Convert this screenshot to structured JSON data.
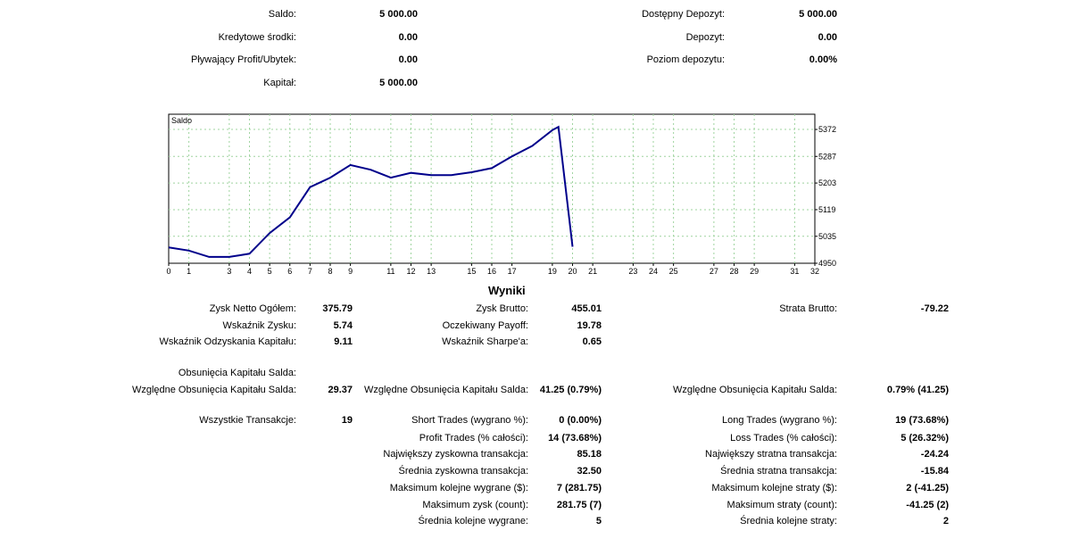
{
  "account": {
    "saldo_label": "Saldo:",
    "saldo_value": "5 000.00",
    "kredyt_label": "Kredytowe środki:",
    "kredyt_value": "0.00",
    "plywajacy_label": "Pływający Profit/Ubytek:",
    "plywajacy_value": "0.00",
    "kapital_label": "Kapitał:",
    "kapital_value": "5 000.00",
    "dostepny_label": "Dostępny Depozyt:",
    "dostepny_value": "5 000.00",
    "depozyt_label": "Depozyt:",
    "depozyt_value": "0.00",
    "poziom_label": "Poziom depozytu:",
    "poziom_value": "0.00%"
  },
  "chart_data": {
    "type": "line",
    "title": "Saldo",
    "series": [
      {
        "x": [
          0,
          1,
          2,
          3,
          3.5,
          4,
          5,
          6,
          7,
          8,
          9,
          10,
          11,
          12,
          13,
          14,
          15,
          16,
          17,
          18,
          19,
          19.3,
          20
        ],
        "y": [
          5000,
          4990,
          4970,
          4970,
          4975,
          4980,
          5045,
          5095,
          5190,
          5220,
          5260,
          5245,
          5220,
          5235,
          5228,
          5228,
          5237,
          5250,
          5287,
          5320,
          5370,
          5380,
          5002
        ],
        "color": "#00008b"
      }
    ],
    "xlim": [
      0,
      32
    ],
    "ylim": [
      4950,
      5420
    ],
    "x_ticks": [
      0,
      1,
      3,
      4,
      5,
      6,
      7,
      8,
      9,
      11,
      12,
      13,
      15,
      16,
      17,
      19,
      20,
      21,
      23,
      24,
      25,
      27,
      28,
      29,
      31,
      32
    ],
    "y_ticks": [
      5372,
      5287,
      5203,
      5119,
      5035,
      4950
    ],
    "grid": true
  },
  "results": {
    "title": "Wyniki",
    "zysk_netto_label": "Zysk Netto Ogółem:",
    "zysk_netto_value": "375.79",
    "zysk_brutto_label": "Zysk Brutto:",
    "zysk_brutto_value": "455.01",
    "strata_brutto_label": "Strata Brutto:",
    "strata_brutto_value": "-79.22",
    "wskaznik_zysku_label": "Wskaźnik Zysku:",
    "wskaznik_zysku_value": "5.74",
    "payoff_label": "Oczekiwany Payoff:",
    "payoff_value": "19.78",
    "odzyskania_label": "Wskaźnik Odzyskania Kapitału:",
    "odzyskania_value": "9.11",
    "sharpe_label": "Wskaźnik Sharpe'a:",
    "sharpe_value": "0.65",
    "obsuniecia_label": "Obsunięcia Kapitału Salda:",
    "wzgl1_label": "Względne Obsunięcia Kapitału Salda:",
    "wzgl1_value": "29.37",
    "wzgl2_label": "Względne Obsunięcia Kapitału Salda:",
    "wzgl2_value": "41.25 (0.79%)",
    "wzgl3_label": "Względne Obsunięcia Kapitału Salda:",
    "wzgl3_value": "0.79% (41.25)",
    "wszystkie_label": "Wszystkie Transakcje:",
    "wszystkie_value": "19",
    "short_label": "Short Trades (wygrano %):",
    "short_value": "0 (0.00%)",
    "long_label": "Long Trades (wygrano %):",
    "long_value": "19 (73.68%)",
    "profit_trades_label": "Profit Trades (% całości):",
    "profit_trades_value": "14 (73.68%)",
    "loss_trades_label": "Loss Trades (% całości):",
    "loss_trades_value": "5 (26.32%)",
    "najw_zysk_label": "Największy zyskowna transakcja:",
    "najw_zysk_value": "85.18",
    "najw_strata_label": "Największy stratna transakcja:",
    "najw_strata_value": "-24.24",
    "sr_zysk_label": "Średnia zyskowna transakcja:",
    "sr_zysk_value": "32.50",
    "sr_strata_label": "Średnia stratna transakcja:",
    "sr_strata_value": "-15.84",
    "max_wygrane_label": "Maksimum kolejne wygrane ($):",
    "max_wygrane_value": "7 (281.75)",
    "max_straty_label": "Maksimum kolejne straty ($):",
    "max_straty_value": "2 (-41.25)",
    "max_zysk_count_label": "Maksimum zysk (count):",
    "max_zysk_count_value": "281.75 (7)",
    "max_straty_count_label": "Maksimum straty (count):",
    "max_straty_count_value": "-41.25 (2)",
    "sr_wygrane_label": "Średnia kolejne wygrane:",
    "sr_wygrane_value": "5",
    "sr_straty_label": "Średnia kolejne straty:",
    "sr_straty_value": "2"
  }
}
